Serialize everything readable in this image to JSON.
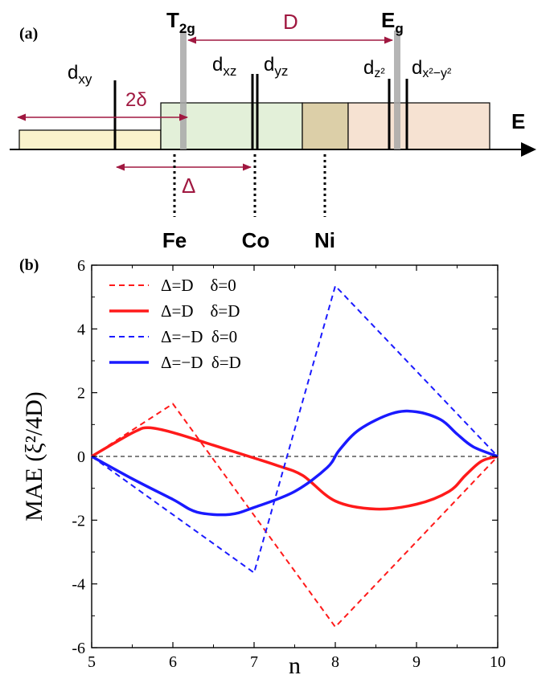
{
  "panel_a": {
    "label": "(a)",
    "axis_label": "E",
    "t2g": {
      "main": "T",
      "sub": "2g"
    },
    "eg": {
      "main": "E",
      "sub": "g"
    },
    "orbitals": {
      "dxy": {
        "main": "d",
        "sub": "xy"
      },
      "dxz": {
        "main": "d",
        "sub": "xz"
      },
      "dyz": {
        "main": "d",
        "sub": "yz"
      },
      "dz2": {
        "main": "d",
        "sub": "z²"
      },
      "dx2y2": {
        "main": "d",
        "sub": "x²−y²"
      }
    },
    "arrows": {
      "D": "D",
      "two_delta": "2δ",
      "Delta": "Δ"
    },
    "elements": [
      "Fe",
      "Co",
      "Ni"
    ],
    "colors": {
      "accent": "#a01840",
      "band_dxy": "#faf3cc",
      "band_t2g": "#e3f0d9",
      "band_overlap": "#dccfa8",
      "band_eg": "#f6e2d2"
    }
  },
  "chart_data": {
    "type": "line",
    "label": "(b)",
    "title": "",
    "xlabel": "n",
    "ylabel": "MAE (ξ²/4D)",
    "xlim": [
      5,
      10
    ],
    "ylim": [
      -6,
      6
    ],
    "xticks": [
      5,
      6,
      7,
      8,
      9,
      10
    ],
    "yticks": [
      -6,
      -4,
      -2,
      0,
      2,
      4,
      6
    ],
    "grid": false,
    "zero_line": true,
    "legend_position": "top-left",
    "series": [
      {
        "name": "Δ=D    δ=0",
        "color": "#ff1a1a",
        "style": "dashed",
        "x": [
          5,
          6,
          8,
          10
        ],
        "y": [
          0,
          1.65,
          -5.35,
          0
        ]
      },
      {
        "name": "Δ=D    δ=D",
        "color": "#ff1a1a",
        "style": "solid",
        "x": [
          5,
          5.3,
          5.55,
          5.7,
          6.0,
          6.5,
          7.0,
          7.3,
          7.6,
          8.0,
          8.5,
          9.0,
          9.4,
          9.6,
          9.8,
          10
        ],
        "y": [
          0,
          0.45,
          0.8,
          0.9,
          0.75,
          0.35,
          -0.05,
          -0.3,
          -0.6,
          -1.4,
          -1.65,
          -1.5,
          -1.1,
          -0.6,
          -0.15,
          0
        ]
      },
      {
        "name": "Δ=−D  δ=0",
        "color": "#1a1aff",
        "style": "dashed",
        "x": [
          5,
          7,
          8,
          10
        ],
        "y": [
          0,
          -3.65,
          5.35,
          0
        ]
      },
      {
        "name": "Δ=−D  δ=D",
        "color": "#1a1aff",
        "style": "solid",
        "x": [
          5,
          5.5,
          6.0,
          6.3,
          6.7,
          7.0,
          7.5,
          7.9,
          8.05,
          8.3,
          8.7,
          9.0,
          9.3,
          9.5,
          9.7,
          10
        ],
        "y": [
          0,
          -0.7,
          -1.35,
          -1.75,
          -1.82,
          -1.6,
          -1.1,
          -0.35,
          0.2,
          0.85,
          1.35,
          1.4,
          1.15,
          0.7,
          0.3,
          0
        ]
      }
    ]
  }
}
